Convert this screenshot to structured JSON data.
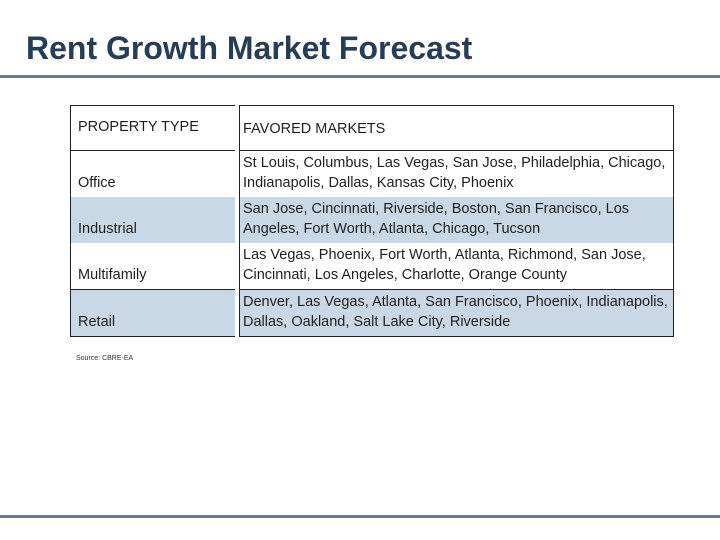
{
  "title": "Rent Growth Market Forecast",
  "table": {
    "headers": [
      "PROPERTY TYPE",
      "FAVORED MARKETS"
    ],
    "rows": [
      {
        "type": "Office",
        "markets": "St Louis, Columbus, Las Vegas, San Jose, Philadelphia, Chicago, Indianapolis, Dallas, Kansas City, Phoenix"
      },
      {
        "type": "Industrial",
        "markets": "San Jose, Cincinnati, Riverside, Boston, San Francisco, Los Angeles, Fort Worth, Atlanta, Chicago, Tucson"
      },
      {
        "type": "Multifamily",
        "markets": "Las Vegas, Phoenix, Fort Worth, Atlanta, Richmond, San Jose, Cincinnati, Los Angeles, Charlotte, Orange County"
      },
      {
        "type": "Retail",
        "markets": "Denver, Las Vegas, Atlanta, San Francisco, Phoenix, Indianapolis, Dallas, Oakland, Salt Lake City, Riverside"
      }
    ]
  },
  "source": "Source: CBRE-EA",
  "colors": {
    "title": "#263d57",
    "row_shade": "#c9d8e6",
    "rule": "#6b7b8c"
  }
}
